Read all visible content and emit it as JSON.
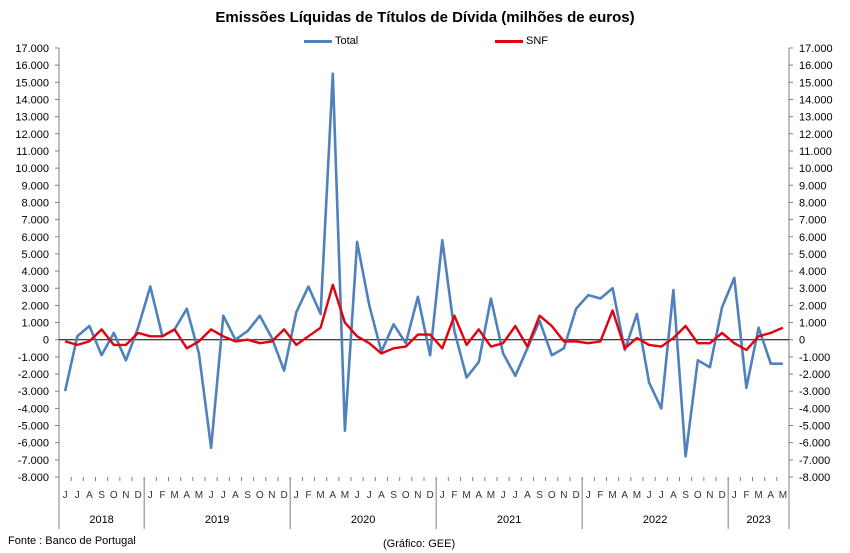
{
  "title": "Emissões Líquidas de Títulos de Dívida (milhões de euros)",
  "source": "Fonte : Banco de Portugal",
  "credit": "(Gráfico: GEE)",
  "colors": {
    "total": "#4F81BD",
    "snf": "#E3000F",
    "axis": "#808080",
    "grid": "#000000"
  },
  "chart_data": {
    "type": "line",
    "title": "Emissões Líquidas de Títulos de Dívida (milhões de euros)",
    "x_month_labels": [
      "J",
      "J",
      "A",
      "S",
      "O",
      "N",
      "D",
      "J",
      "F",
      "M",
      "A",
      "M",
      "J",
      "J",
      "A",
      "S",
      "O",
      "N",
      "D",
      "J",
      "F",
      "M",
      "A",
      "M",
      "J",
      "J",
      "A",
      "S",
      "O",
      "N",
      "D",
      "J",
      "F",
      "M",
      "A",
      "M",
      "J",
      "J",
      "A",
      "S",
      "O",
      "N",
      "D",
      "J",
      "F",
      "M",
      "A",
      "M",
      "J",
      "J",
      "A",
      "S",
      "O",
      "N",
      "D",
      "J",
      "F",
      "M",
      "A",
      "M"
    ],
    "year_labels": [
      {
        "label": "2018",
        "start": 0,
        "end": 6
      },
      {
        "label": "2019",
        "start": 7,
        "end": 18
      },
      {
        "label": "2020",
        "start": 19,
        "end": 30
      },
      {
        "label": "2021",
        "start": 31,
        "end": 42
      },
      {
        "label": "2022",
        "start": 43,
        "end": 54
      },
      {
        "label": "2023",
        "start": 55,
        "end": 59
      }
    ],
    "y_tick_labels": [
      "17.000",
      "16.000",
      "15.000",
      "14.000",
      "13.000",
      "12.000",
      "11.000",
      "10.000",
      "9.000",
      "8.000",
      "7.000",
      "6.000",
      "5.000",
      "4.000",
      "3.000",
      "2.000",
      "1.000",
      "0",
      "-1.000",
      "-2.000",
      "-3.000",
      "-4.000",
      "-5.000",
      "-6.000",
      "-7.000",
      "-8.000"
    ],
    "ylim": [
      -8000,
      17000
    ],
    "legend_position": "top",
    "series": [
      {
        "name": "Total",
        "values": [
          -3000,
          200,
          800,
          -900,
          400,
          -1200,
          700,
          3100,
          200,
          600,
          1800,
          -800,
          -6300,
          1400,
          0,
          500,
          1400,
          100,
          -1800,
          1600,
          3100,
          1500,
          15500,
          -5300,
          5700,
          2000,
          -700,
          900,
          -200,
          2500,
          -900,
          5800,
          500,
          -2200,
          -1300,
          2400,
          -800,
          -2100,
          -500,
          1100,
          -900,
          -500,
          1800,
          2600,
          2400,
          3000,
          -600,
          1500,
          -2500,
          -4000,
          2900,
          -6800,
          -1200,
          -1600,
          1900,
          3600,
          -2800,
          700,
          -1400,
          -1400
        ]
      },
      {
        "name": "SNF",
        "values": [
          -100,
          -300,
          -100,
          600,
          -300,
          -300,
          400,
          200,
          200,
          600,
          -500,
          -100,
          600,
          200,
          -100,
          0,
          -200,
          -100,
          600,
          -300,
          200,
          700,
          3200,
          1000,
          200,
          -200,
          -800,
          -500,
          -400,
          300,
          300,
          -500,
          1400,
          -300,
          600,
          -400,
          -200,
          800,
          -400,
          1400,
          800,
          -100,
          -100,
          -200,
          -100,
          1700,
          -500,
          100,
          -300,
          -400,
          100,
          800,
          -200,
          -200,
          400,
          -200,
          -600,
          200,
          400,
          700
        ]
      }
    ]
  }
}
